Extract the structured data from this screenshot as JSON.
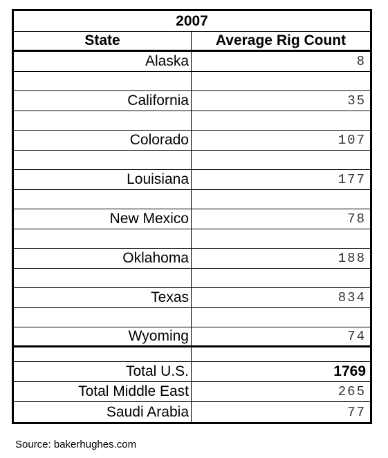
{
  "table": {
    "year": "2007",
    "col_state": "State",
    "col_rigs": "Average Rig Count",
    "rows": [
      {
        "state": "Alaska",
        "rigs": "8"
      },
      {
        "state": "California",
        "rigs": "35"
      },
      {
        "state": "Colorado",
        "rigs": "107"
      },
      {
        "state": "Louisiana",
        "rigs": "177"
      },
      {
        "state": "New Mexico",
        "rigs": "78"
      },
      {
        "state": "Oklahoma",
        "rigs": "188"
      },
      {
        "state": "Texas",
        "rigs": "834"
      },
      {
        "state": "Wyoming",
        "rigs": "74"
      }
    ],
    "totals": [
      {
        "label": "Total U.S.",
        "value": "1769"
      },
      {
        "label": "Total Middle East",
        "value": "265"
      },
      {
        "label": "Saudi Arabia",
        "value": "77"
      }
    ]
  },
  "source": "Source: bakerhughes.com"
}
